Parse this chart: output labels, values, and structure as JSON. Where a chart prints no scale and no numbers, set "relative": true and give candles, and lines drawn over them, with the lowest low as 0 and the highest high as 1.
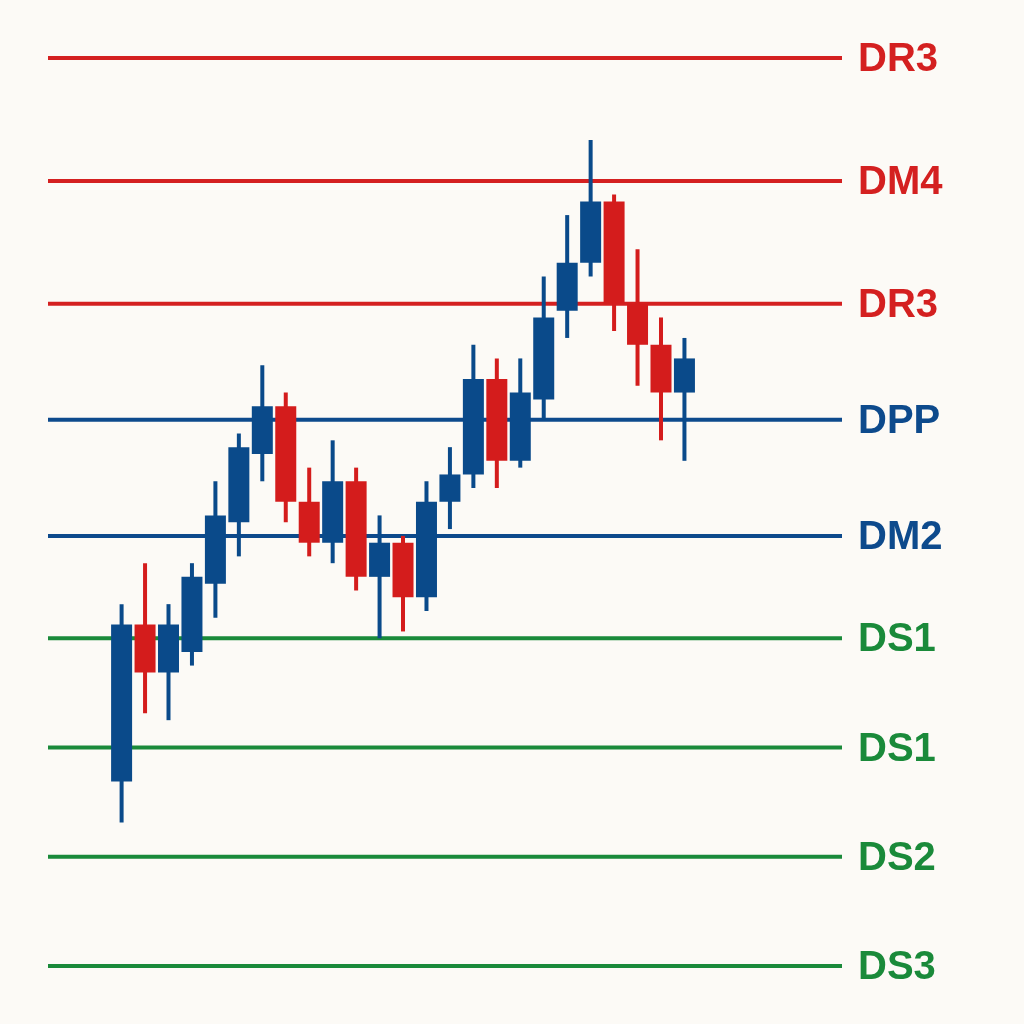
{
  "chart_data": {
    "type": "candlestick",
    "relative": true,
    "categories": [
      null,
      null,
      null,
      null,
      null,
      null,
      null,
      null,
      null,
      null,
      null,
      null,
      null,
      null,
      null,
      null,
      null,
      null,
      null,
      null,
      null,
      null,
      null,
      null,
      null
    ],
    "ohlc": [
      [
        0.06,
        0.32,
        0,
        0.29
      ],
      [
        0.29,
        0.38,
        0.16,
        0.22
      ],
      [
        0.22,
        0.32,
        0.15,
        0.29
      ],
      [
        0.25,
        0.38,
        0.23,
        0.36
      ],
      [
        0.35,
        0.5,
        0.3,
        0.45
      ],
      [
        0.44,
        0.57,
        0.39,
        0.55
      ],
      [
        0.54,
        0.67,
        0.5,
        0.61
      ],
      [
        0.61,
        0.63,
        0.44,
        0.47
      ],
      [
        0.47,
        0.52,
        0.39,
        0.41
      ],
      [
        0.41,
        0.56,
        0.38,
        0.5
      ],
      [
        0.5,
        0.52,
        0.34,
        0.36
      ],
      [
        0.36,
        0.45,
        0.27,
        0.41
      ],
      [
        0.41,
        0.42,
        0.28,
        0.33
      ],
      [
        0.33,
        0.5,
        0.31,
        0.47
      ],
      [
        0.47,
        0.55,
        0.43,
        0.51
      ],
      [
        0.51,
        0.7,
        0.49,
        0.65
      ],
      [
        0.65,
        0.68,
        0.49,
        0.53
      ],
      [
        0.53,
        0.68,
        0.52,
        0.63
      ],
      [
        0.62,
        0.8,
        0.59,
        0.74
      ],
      [
        0.75,
        0.89,
        0.71,
        0.82
      ],
      [
        0.82,
        1,
        0.8,
        0.91
      ],
      [
        0.91,
        0.92,
        0.72,
        0.76
      ],
      [
        0.76,
        0.84,
        0.64,
        0.7
      ],
      [
        0.7,
        0.74,
        0.56,
        0.63
      ],
      [
        0.63,
        0.71,
        0.53,
        0.68
      ]
    ],
    "colors": [
      "#0a4a8a",
      "#d41c1c",
      "#0a4a8a",
      "#0a4a8a",
      "#0a4a8a",
      "#0a4a8a",
      "#0a4a8a",
      "#d41c1c",
      "#d41c1c",
      "#0a4a8a",
      "#d41c1c",
      "#0a4a8a",
      "#d41c1c",
      "#0a4a8a",
      "#0a4a8a",
      "#0a4a8a",
      "#d41c1c",
      "#0a4a8a",
      "#0a4a8a",
      "#0a4a8a",
      "#0a4a8a",
      "#d41c1c",
      "#d41c1c",
      "#d41c1c",
      "#0a4a8a"
    ],
    "ref_lines": [
      {
        "axis": "y",
        "value": 1.12,
        "label": "DR3",
        "color": "#d42020"
      },
      {
        "axis": "y",
        "value": 0.94,
        "label": "DM4",
        "color": "#d42020"
      },
      {
        "axis": "y",
        "value": 0.76,
        "label": "DR3",
        "color": "#d42020"
      },
      {
        "axis": "y",
        "value": 0.59,
        "label": "DPP",
        "color": "#0d4a8c"
      },
      {
        "axis": "y",
        "value": 0.42,
        "label": "DM2",
        "color": "#0d4a8c"
      },
      {
        "axis": "y",
        "value": 0.27,
        "label": "DS1",
        "color": "#1a8a3a"
      },
      {
        "axis": "y",
        "value": 0.11,
        "label": "DS1",
        "color": "#1a8a3a"
      },
      {
        "axis": "y",
        "value": -0.05,
        "label": "DS2",
        "color": "#1a8a3a"
      },
      {
        "axis": "y",
        "value": -0.21,
        "label": "DS3",
        "color": "#1a8a3a"
      }
    ]
  }
}
